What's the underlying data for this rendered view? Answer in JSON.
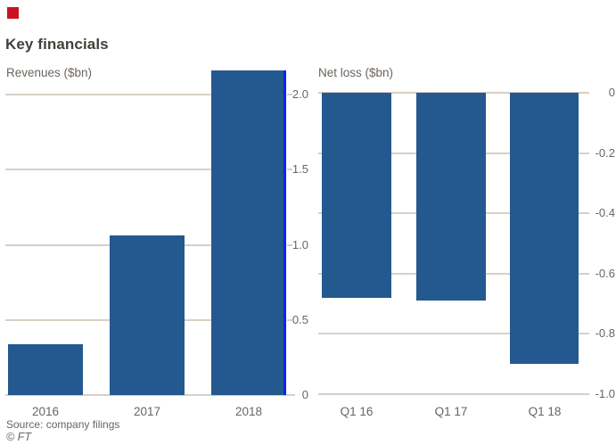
{
  "title": "Key financials",
  "source": "Source: company filings",
  "copyright": "© FT",
  "colors": {
    "bar": "#23598f",
    "accent_line": "#0c22f0",
    "gridline": "#d9cfc6",
    "marker_red": "#cc1222",
    "title_text": "#46403a",
    "label_text": "#6b645e",
    "background": "#ffffff"
  },
  "chart_data": [
    {
      "type": "bar",
      "title": "Revenues ($bn)",
      "categories": [
        "2016",
        "2017",
        "2018"
      ],
      "values": [
        0.34,
        1.06,
        2.16
      ],
      "xlabel": "",
      "ylabel": "Revenues ($bn)",
      "ylim": [
        0,
        2.2
      ],
      "yticks": [
        0,
        0.5,
        1.0,
        1.5,
        2.0
      ],
      "ytick_labels": [
        "0",
        "0.5",
        "1.0",
        "1.5",
        "2.0"
      ],
      "grid": true,
      "axis_side": "right",
      "highlight": "2018 bar has bright blue line on right edge"
    },
    {
      "type": "bar",
      "title": "Net loss ($bn)",
      "categories": [
        "Q1 16",
        "Q1 17",
        "Q1 18"
      ],
      "values": [
        -0.68,
        -0.69,
        -0.9
      ],
      "xlabel": "",
      "ylabel": "Net loss ($bn)",
      "ylim": [
        -1.0,
        0
      ],
      "yticks": [
        0,
        -0.2,
        -0.4,
        -0.6,
        -0.8,
        -1.0
      ],
      "ytick_labels": [
        "0",
        "-0.2",
        "-0.4",
        "-0.6",
        "-0.8",
        "-1.0"
      ],
      "grid": true,
      "axis_side": "right",
      "bars_hang_from_zero": true
    }
  ]
}
